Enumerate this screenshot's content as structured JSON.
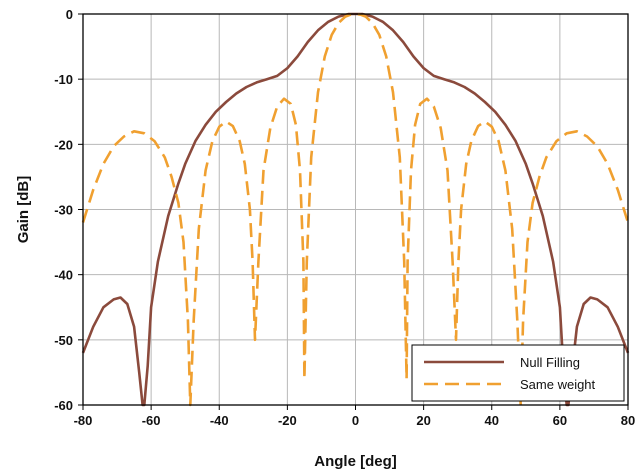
{
  "chart_data": {
    "type": "line",
    "xlabel": "Angle [deg]",
    "ylabel": "Gain [dB]",
    "xlim": [
      -80,
      80
    ],
    "ylim": [
      -60,
      0
    ],
    "xticks": [
      -80,
      -60,
      -40,
      -20,
      0,
      20,
      40,
      60,
      80
    ],
    "yticks": [
      0,
      -10,
      -20,
      -30,
      -40,
      -50,
      -60
    ],
    "grid": true,
    "legend_position": "bottom-right",
    "series": [
      {
        "name": "Null Filling",
        "color": "#8B4A3C",
        "style": "solid",
        "x": [
          -80,
          -77,
          -74,
          -71,
          -69,
          -67,
          -65,
          -63.5,
          -62.5,
          -62,
          -61,
          -60,
          -58,
          -55,
          -52,
          -50,
          -47,
          -44,
          -41,
          -38,
          -35,
          -32,
          -29,
          -26,
          -23,
          -20,
          -17,
          -14,
          -11,
          -8,
          -5,
          -2,
          0,
          2,
          5,
          8,
          11,
          14,
          17,
          20,
          23,
          26,
          29,
          32,
          35,
          38,
          41,
          44,
          47,
          50,
          52,
          55,
          58,
          60,
          61,
          62,
          62.5,
          63.5,
          65,
          67,
          69,
          71,
          74,
          77,
          80
        ],
        "y": [
          -52,
          -48,
          -45,
          -43.8,
          -43.5,
          -44.5,
          -48,
          -55,
          -60,
          -60,
          -54,
          -45,
          -38,
          -31,
          -26,
          -23,
          -19.5,
          -17,
          -15,
          -13.5,
          -12.2,
          -11.2,
          -10.5,
          -10,
          -9.5,
          -8.3,
          -6.5,
          -4.3,
          -2.5,
          -1.2,
          -0.4,
          0,
          0,
          0,
          -0.4,
          -1.2,
          -2.5,
          -4.3,
          -6.5,
          -8.3,
          -9.5,
          -10,
          -10.5,
          -11.2,
          -12.2,
          -13.5,
          -15,
          -17,
          -19.5,
          -23,
          -26,
          -31,
          -38,
          -45,
          -54,
          -60,
          -60,
          -55,
          -48,
          -44.5,
          -43.5,
          -43.8,
          -45,
          -48,
          -52
        ]
      },
      {
        "name": "Same weight",
        "color": "#F0A030",
        "style": "dashed",
        "x": [
          -80,
          -77,
          -74,
          -71,
          -68,
          -65,
          -62,
          -59,
          -56,
          -54,
          -52,
          -50.5,
          -49.2,
          -48.5,
          -47.5,
          -46,
          -44,
          -42,
          -40,
          -38,
          -36,
          -34,
          -32.5,
          -31,
          -30.2,
          -29.5,
          -28.5,
          -27,
          -25,
          -23,
          -21,
          -19,
          -17.5,
          -16.3,
          -15.3,
          -15,
          -14.3,
          -13,
          -11,
          -9,
          -7,
          -5,
          -3,
          -1.5,
          0,
          1.5,
          3,
          5,
          7,
          9,
          11,
          13,
          14.3,
          15,
          15.3,
          16.3,
          17.5,
          19,
          21,
          23,
          25,
          27,
          28.5,
          29.5,
          30.2,
          31,
          32.5,
          34,
          36,
          38,
          40,
          42,
          44,
          46,
          47.5,
          48.5,
          49.2,
          50.5,
          52,
          54,
          56,
          59,
          62,
          65,
          68,
          71,
          74,
          77,
          80
        ],
        "y": [
          -32,
          -27,
          -23,
          -20.3,
          -18.8,
          -18,
          -18.3,
          -19.5,
          -22,
          -25,
          -29,
          -35,
          -47,
          -60,
          -47,
          -33,
          -24,
          -19.5,
          -17.3,
          -16.5,
          -17.2,
          -19.5,
          -23,
          -30,
          -38,
          -50,
          -38,
          -24,
          -17.5,
          -14.2,
          -13,
          -13.8,
          -17,
          -24,
          -38,
          -56,
          -38,
          -22,
          -12,
          -6.5,
          -3.2,
          -1.4,
          -0.4,
          -0.1,
          0,
          -0.1,
          -0.4,
          -1.4,
          -3.2,
          -6.5,
          -12,
          -22,
          -38,
          -56,
          -38,
          -24,
          -17,
          -13.8,
          -13,
          -14.2,
          -17.5,
          -24,
          -38,
          -50,
          -38,
          -30,
          -23,
          -19.5,
          -17.2,
          -16.5,
          -17.3,
          -19.5,
          -24,
          -33,
          -47,
          -60,
          -47,
          -35,
          -29,
          -25,
          -22,
          -19.5,
          -18.3,
          -18,
          -18.8,
          -20.3,
          -23,
          -27,
          -32
        ]
      }
    ]
  }
}
